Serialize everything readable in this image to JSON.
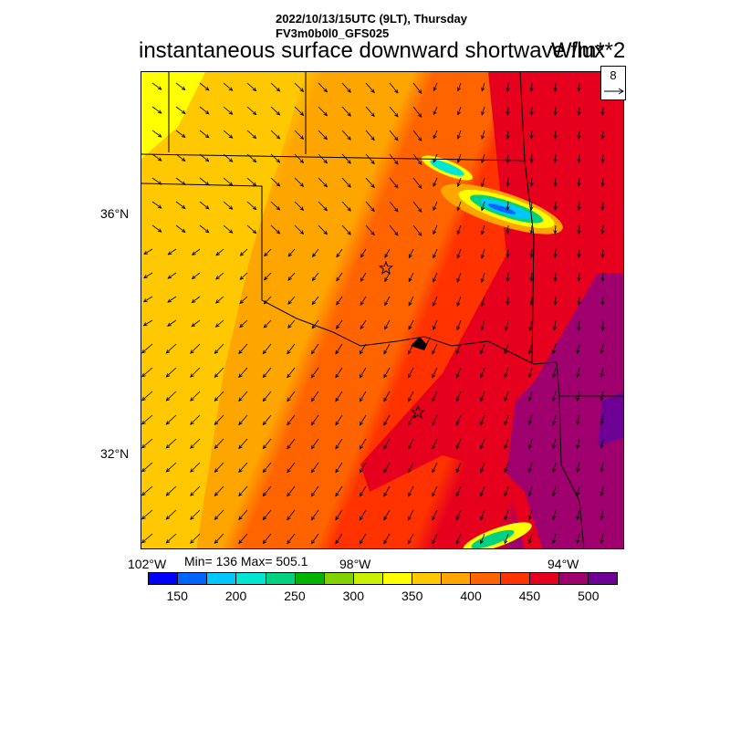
{
  "header": {
    "line1": "2022/10/13/15UTC (9LT), Thursday",
    "line2": "FV3m0b0l0_GFS025",
    "title": "instantaneous surface downward shortwave flux",
    "units": "W/m**2"
  },
  "map": {
    "lat_labels": [
      "36°N",
      "32°N"
    ],
    "lon_labels": [
      "102°W",
      "98°W",
      "94°W"
    ],
    "stats": "Min= 136 Max= 505.1",
    "vector_reference": "8",
    "markers": [
      "star",
      "star"
    ]
  },
  "colorbar": {
    "colors": [
      "#0000ff",
      "#0064ff",
      "#00c8ff",
      "#00e6d2",
      "#00d282",
      "#00b400",
      "#82d200",
      "#c8f000",
      "#ffff00",
      "#ffc800",
      "#ffa500",
      "#ff6400",
      "#ff3200",
      "#e6001e",
      "#a0006e",
      "#6e0096"
    ],
    "labels": [
      "150",
      "200",
      "250",
      "300",
      "350",
      "400",
      "450",
      "500"
    ]
  }
}
